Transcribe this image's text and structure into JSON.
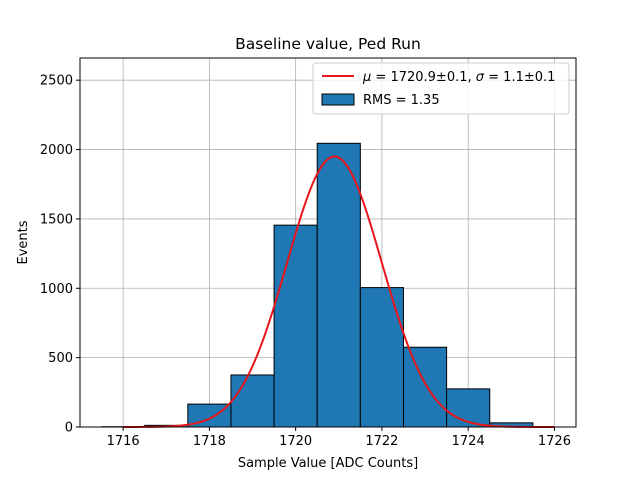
{
  "chart_data": {
    "type": "bar",
    "title": "Baseline value, Ped Run",
    "xlabel": "Sample Value [ADC Counts]",
    "ylabel": "Events",
    "xlim": [
      1715,
      1726.5
    ],
    "ylim": [
      0,
      2660
    ],
    "grid": true,
    "xticks": [
      1716,
      1718,
      1720,
      1722,
      1724,
      1726
    ],
    "yticks": [
      0,
      500,
      1000,
      1500,
      2000,
      2500
    ],
    "bin_width": 1,
    "histogram": {
      "name": "RMS = 1.35",
      "color": "#1f77b4",
      "edge_color": "#000000",
      "bins": [
        {
          "start": 1715.5,
          "value": 2
        },
        {
          "start": 1716.5,
          "value": 12
        },
        {
          "start": 1717.5,
          "value": 165
        },
        {
          "start": 1718.5,
          "value": 375
        },
        {
          "start": 1719.5,
          "value": 1455
        },
        {
          "start": 1720.5,
          "value": 2045
        },
        {
          "start": 1721.5,
          "value": 1005
        },
        {
          "start": 1722.5,
          "value": 575
        },
        {
          "start": 1723.5,
          "value": 275
        },
        {
          "start": 1724.5,
          "value": 30
        }
      ]
    },
    "fit": {
      "type": "gaussian",
      "color": "#e8161b",
      "mu": 1720.9,
      "sigma": 1.1,
      "amplitude": 1950,
      "x_range": [
        1716,
        1726
      ],
      "legend_label": {
        "mu_symbol": "μ",
        "mu_text": " = 1720.9±0.1, ",
        "sigma_symbol": "σ",
        "sigma_text": " = 1.1±0.1"
      }
    },
    "legend_position": "top-right"
  }
}
